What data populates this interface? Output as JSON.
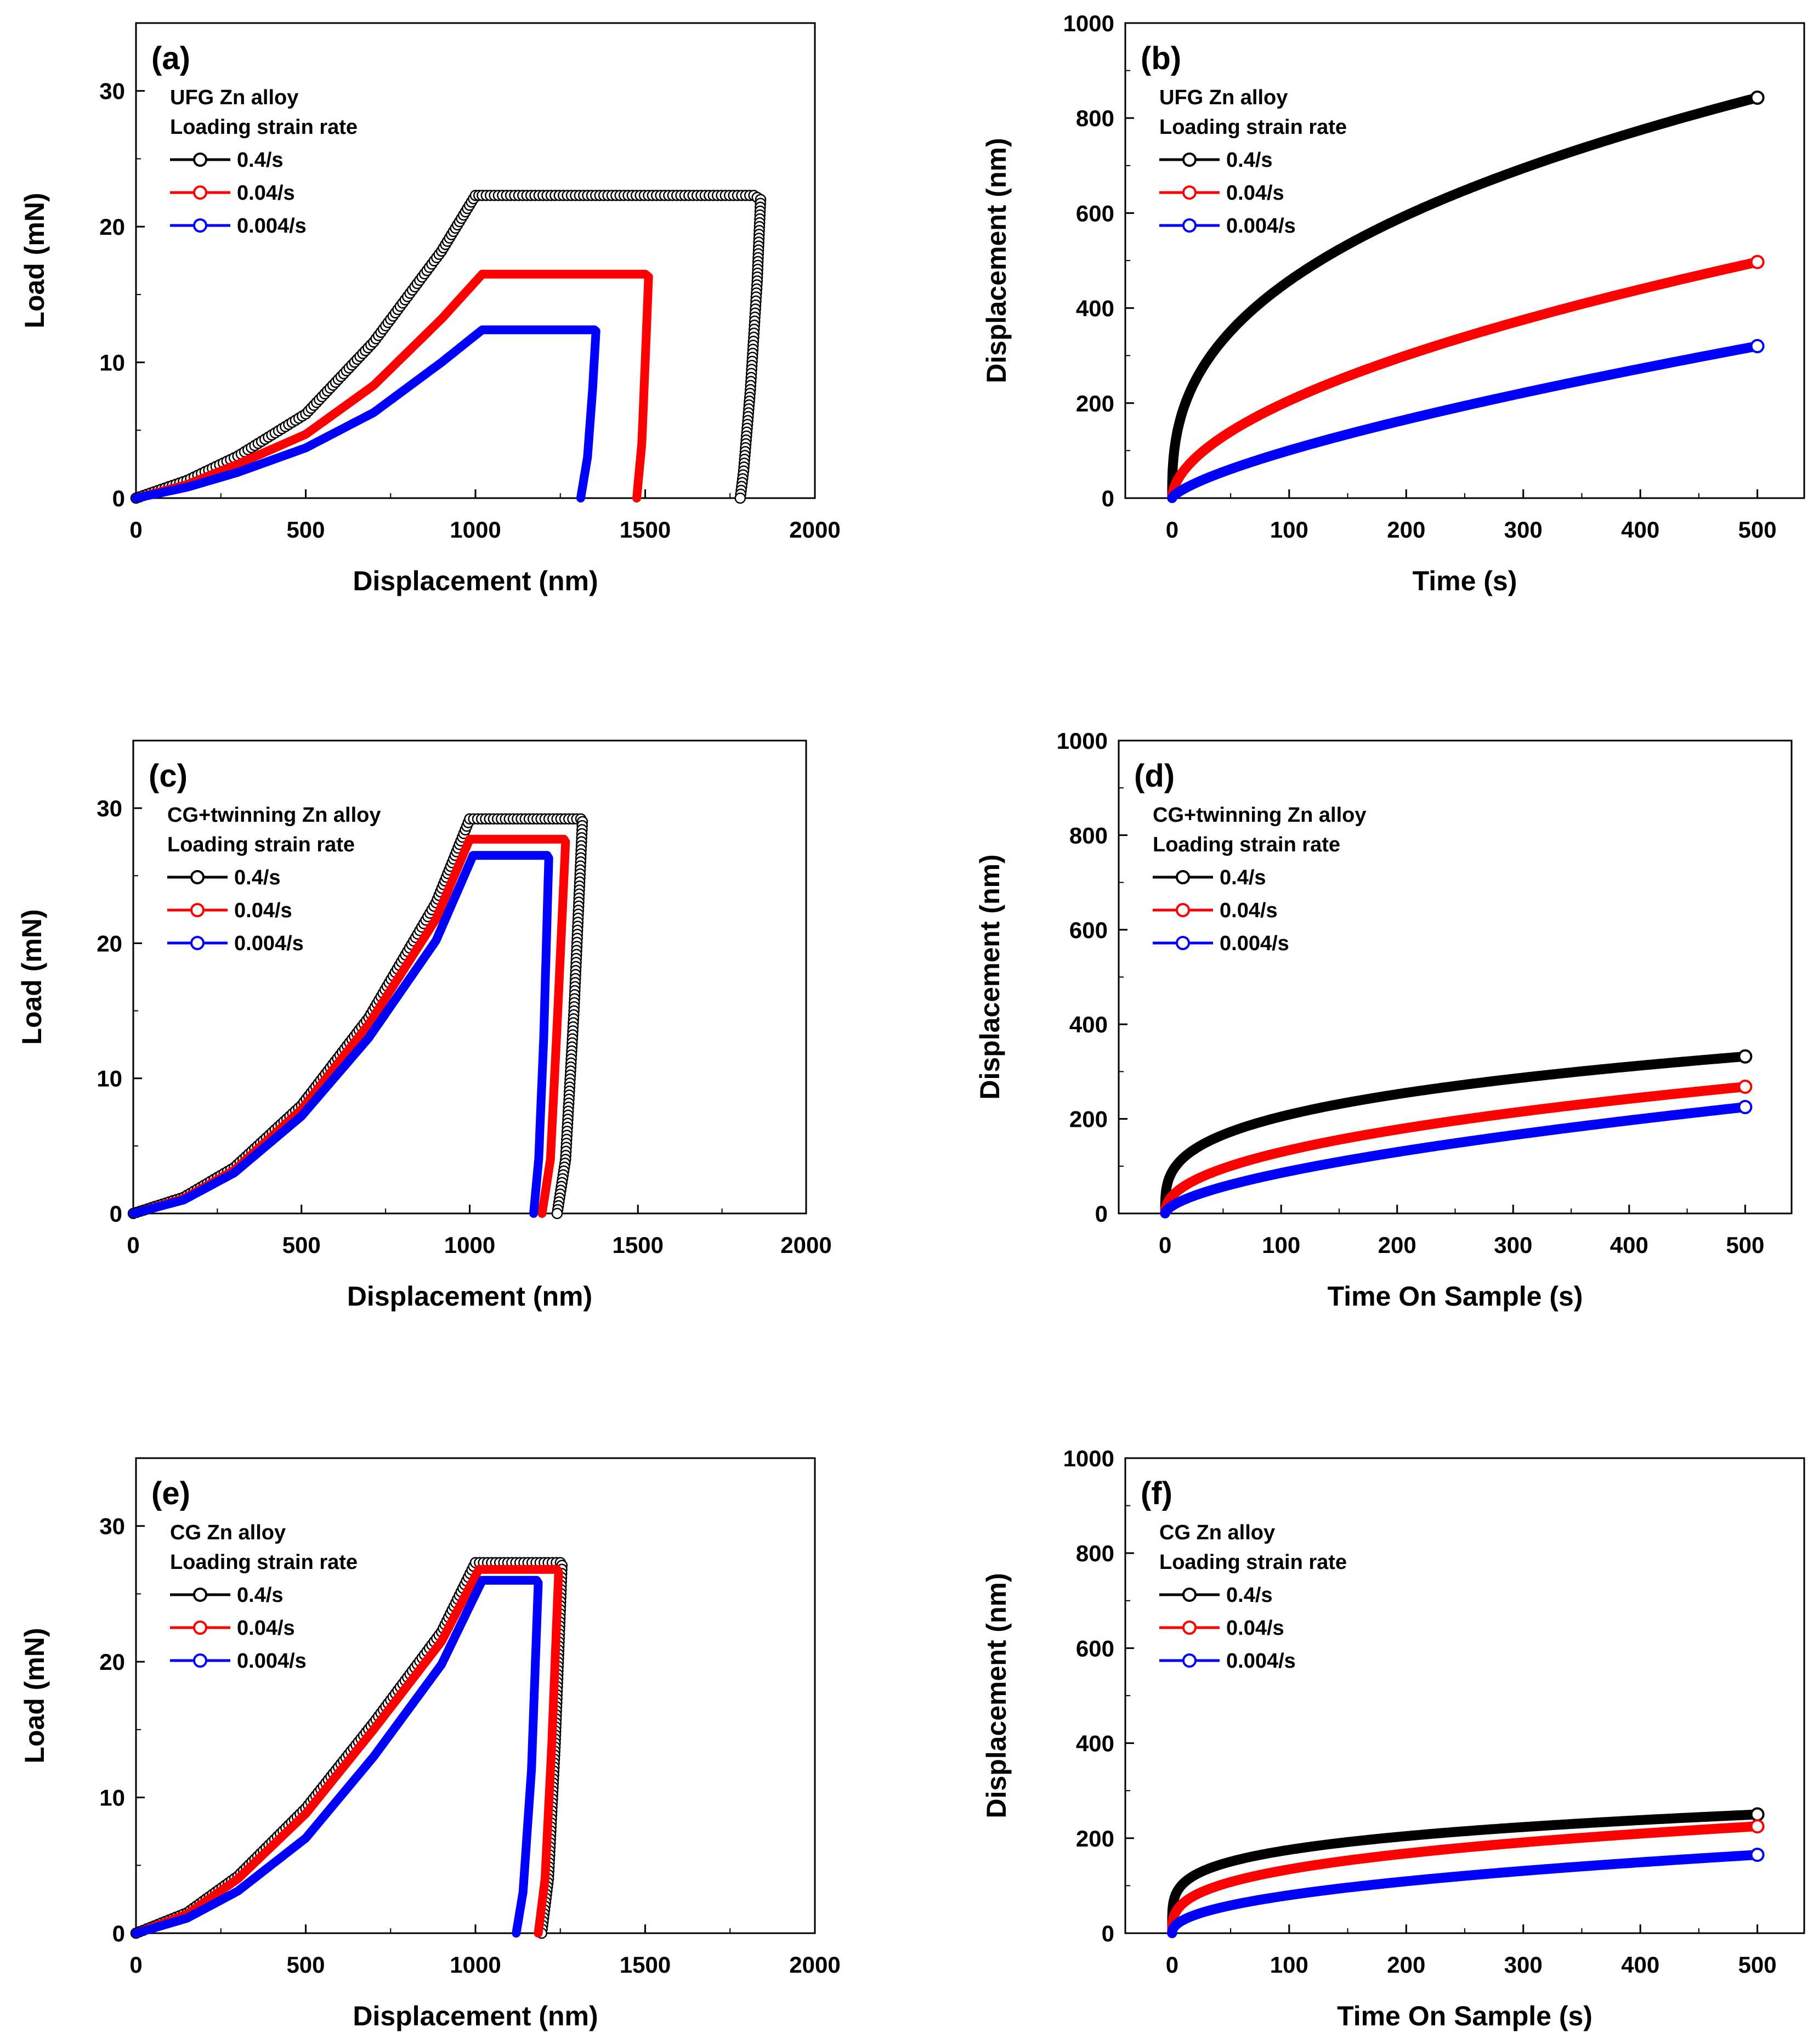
{
  "chart_data": [
    {
      "panel": "(a)",
      "type": "line",
      "xlabel": "Displacement (nm)",
      "ylabel": "Load (mN)",
      "xlim": [
        0,
        2000
      ],
      "ylim": [
        0,
        35
      ],
      "xticks": [
        0,
        500,
        1000,
        1500,
        2000
      ],
      "yticks": [
        0,
        10,
        20,
        30
      ],
      "legend_title": [
        "UFG Zn alloy",
        "Loading strain rate"
      ],
      "series": [
        {
          "name": "0.4/s",
          "color": "#000000",
          "open_markers": true,
          "x": [
            0,
            150,
            300,
            500,
            700,
            900,
            1000,
            1020,
            1820,
            1840,
            1830,
            1810,
            1790,
            1780
          ],
          "y": [
            0,
            1.3,
            3.1,
            6.2,
            11.5,
            18.2,
            22.3,
            22.3,
            22.3,
            22.0,
            16,
            8,
            2,
            0
          ]
        },
        {
          "name": "0.04/s",
          "color": "#ff0000",
          "open_markers": false,
          "x": [
            0,
            150,
            300,
            500,
            700,
            900,
            1020,
            1500,
            1510,
            1500,
            1490,
            1475
          ],
          "y": [
            0,
            1.0,
            2.5,
            4.7,
            8.3,
            13.2,
            16.5,
            16.5,
            16.3,
            10,
            4,
            0
          ]
        },
        {
          "name": "0.004/s",
          "color": "#0000ff",
          "open_markers": false,
          "x": [
            0,
            150,
            300,
            500,
            700,
            900,
            1020,
            1350,
            1355,
            1345,
            1330,
            1310
          ],
          "y": [
            0,
            0.8,
            1.9,
            3.7,
            6.3,
            10.0,
            12.4,
            12.4,
            12.3,
            8,
            3,
            0
          ]
        }
      ]
    },
    {
      "panel": "(b)",
      "type": "line",
      "xlabel": "Time (s)",
      "ylabel": "Displacement (nm)",
      "xlim": [
        -40,
        540
      ],
      "ylim": [
        0,
        1000
      ],
      "xticks": [
        0,
        100,
        200,
        300,
        400,
        500
      ],
      "yticks": [
        0,
        200,
        400,
        600,
        800,
        1000
      ],
      "legend_title": [
        "UFG Zn alloy",
        "Loading strain rate"
      ],
      "series": [
        {
          "name": "0.4/s",
          "color": "#000000",
          "end_value": 843,
          "exponent": 0.38
        },
        {
          "name": "0.04/s",
          "color": "#ff0000",
          "end_value": 497,
          "exponent": 0.55
        },
        {
          "name": "0.004/s",
          "color": "#0000ff",
          "end_value": 320,
          "exponent": 0.72
        }
      ]
    },
    {
      "panel": "(c)",
      "type": "line",
      "xlabel": "Displacement (nm)",
      "ylabel": "Load (mN)",
      "xlim": [
        0,
        2000
      ],
      "ylim": [
        0,
        35
      ],
      "xticks": [
        0,
        500,
        1000,
        1500,
        2000
      ],
      "yticks": [
        0,
        10,
        20,
        30
      ],
      "legend_title": [
        "CG+twinning Zn alloy",
        "Loading strain rate"
      ],
      "series": [
        {
          "name": "0.4/s",
          "color": "#000000",
          "open_markers": true,
          "x": [
            0,
            150,
            300,
            500,
            700,
            900,
            1000,
            1330,
            1335,
            1310,
            1285,
            1260
          ],
          "y": [
            0,
            1.2,
            3.4,
            8.0,
            14.5,
            23.0,
            29.2,
            29.2,
            29.0,
            15,
            4,
            0
          ]
        },
        {
          "name": "0.04/s",
          "color": "#ff0000",
          "open_markers": false,
          "x": [
            0,
            150,
            300,
            500,
            700,
            900,
            1000,
            1280,
            1285,
            1260,
            1240,
            1215
          ],
          "y": [
            0,
            1.1,
            3.2,
            7.7,
            14.0,
            21.8,
            27.7,
            27.7,
            27.5,
            14,
            4,
            0
          ]
        },
        {
          "name": "0.004/s",
          "color": "#0000ff",
          "open_markers": false,
          "x": [
            0,
            150,
            300,
            500,
            700,
            900,
            1010,
            1230,
            1235,
            1220,
            1205,
            1190
          ],
          "y": [
            0,
            1.0,
            3.0,
            7.2,
            13.0,
            20.2,
            26.5,
            26.5,
            26.3,
            13,
            4,
            0
          ]
        }
      ]
    },
    {
      "panel": "(d)",
      "type": "line",
      "xlabel": "Time On Sample (s)",
      "ylabel": "Displacement (nm)",
      "xlim": [
        -40,
        540
      ],
      "ylim": [
        0,
        1000
      ],
      "xticks": [
        0,
        100,
        200,
        300,
        400,
        500
      ],
      "yticks": [
        0,
        200,
        400,
        600,
        800,
        1000
      ],
      "legend_title": [
        "CG+twinning Zn alloy",
        "Loading strain rate"
      ],
      "series": [
        {
          "name": "0.4/s",
          "color": "#000000",
          "end_value": 332,
          "exponent": 0.3
        },
        {
          "name": "0.04/s",
          "color": "#ff0000",
          "end_value": 268,
          "exponent": 0.45
        },
        {
          "name": "0.004/s",
          "color": "#0000ff",
          "end_value": 225,
          "exponent": 0.6
        }
      ]
    },
    {
      "panel": "(e)",
      "type": "line",
      "xlabel": "Displacement (nm)",
      "ylabel": "Load (mN)",
      "xlim": [
        0,
        2000
      ],
      "ylim": [
        0,
        35
      ],
      "xticks": [
        0,
        500,
        1000,
        1500,
        2000
      ],
      "yticks": [
        0,
        10,
        20,
        30
      ],
      "legend_title": [
        "CG Zn alloy",
        "Loading strain rate"
      ],
      "series": [
        {
          "name": "0.4/s",
          "color": "#000000",
          "open_markers": true,
          "x": [
            0,
            150,
            300,
            500,
            700,
            900,
            1000,
            1250,
            1255,
            1235,
            1215,
            1195
          ],
          "y": [
            0,
            1.5,
            4.2,
            9.2,
            15.5,
            22.2,
            27.3,
            27.3,
            27.1,
            14,
            4,
            0
          ]
        },
        {
          "name": "0.04/s",
          "color": "#ff0000",
          "open_markers": false,
          "x": [
            0,
            150,
            300,
            500,
            700,
            900,
            1010,
            1240,
            1245,
            1225,
            1205,
            1185
          ],
          "y": [
            0,
            1.4,
            4.0,
            8.8,
            15.0,
            21.5,
            26.8,
            26.8,
            26.6,
            14,
            4,
            0
          ]
        },
        {
          "name": "0.004/s",
          "color": "#0000ff",
          "open_markers": false,
          "x": [
            0,
            150,
            300,
            500,
            700,
            900,
            1020,
            1180,
            1185,
            1165,
            1140,
            1120
          ],
          "y": [
            0,
            1.1,
            3.1,
            7.0,
            13.0,
            19.8,
            26.0,
            26.0,
            25.8,
            12,
            3,
            0
          ]
        }
      ]
    },
    {
      "panel": "(f)",
      "type": "line",
      "xlabel": "Time On Sample (s)",
      "ylabel": "Displacement (nm)",
      "xlim": [
        -40,
        540
      ],
      "ylim": [
        0,
        1000
      ],
      "xticks": [
        0,
        100,
        200,
        300,
        400,
        500
      ],
      "yticks": [
        0,
        200,
        400,
        600,
        800,
        1000
      ],
      "legend_title": [
        "CG Zn alloy",
        "Loading strain rate"
      ],
      "series": [
        {
          "name": "0.4/s",
          "color": "#000000",
          "end_value": 250,
          "exponent": 0.22
        },
        {
          "name": "0.04/s",
          "color": "#ff0000",
          "end_value": 225,
          "exponent": 0.32
        },
        {
          "name": "0.004/s",
          "color": "#0000ff",
          "end_value": 165,
          "exponent": 0.45
        }
      ]
    }
  ]
}
